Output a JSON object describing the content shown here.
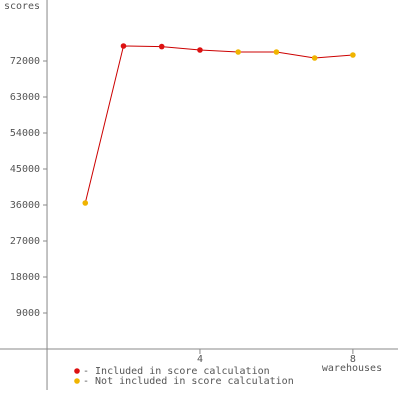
{
  "chart_data": {
    "type": "line",
    "y_label": "scores",
    "x_label": "warehouses",
    "x": [
      1,
      2,
      3,
      4,
      5,
      6,
      7,
      8
    ],
    "line_color": "#cc0000",
    "series": [
      {
        "name": "- Included in score calculation",
        "color": "#dd1111",
        "values": [
          null,
          75750,
          75600,
          74750,
          null,
          null,
          null,
          null
        ]
      },
      {
        "name": "- Not included in score calculation",
        "color": "#f0b400",
        "values": [
          36500,
          null,
          null,
          null,
          74250,
          74250,
          72750,
          73500
        ]
      }
    ],
    "xlim": [
      -1.23,
      9.18
    ],
    "xticks": [
      4,
      8
    ],
    "ylim": [
      -10250,
      87250
    ],
    "yticks": [
      9000,
      18000,
      27000,
      36000,
      45000,
      54000,
      63000,
      72000
    ]
  }
}
